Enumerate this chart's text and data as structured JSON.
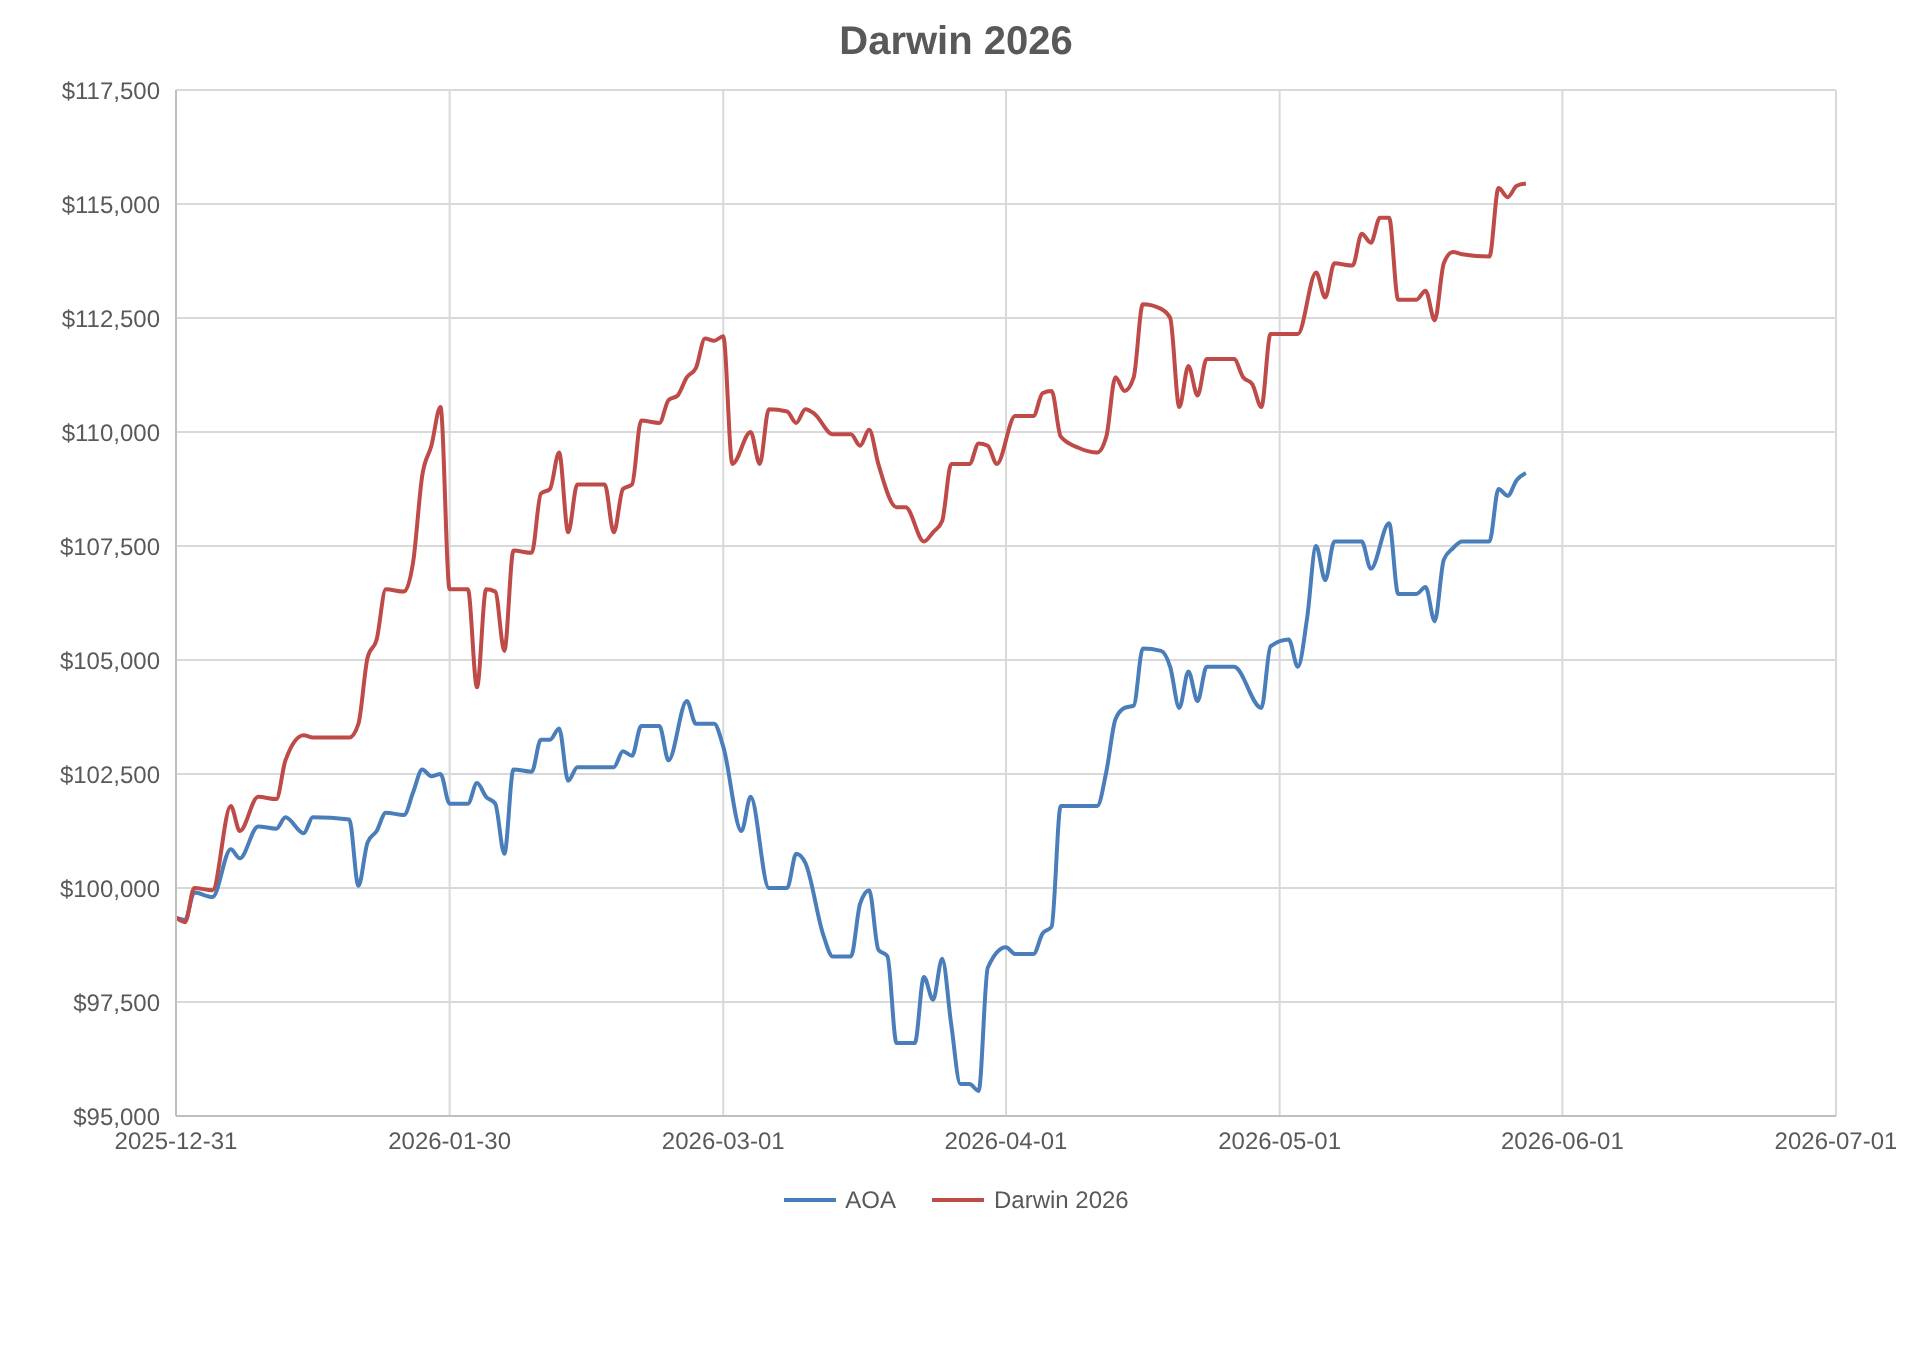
{
  "chart_data": {
    "type": "line",
    "title": "Darwin 2026",
    "legend": "bottom",
    "grid": true,
    "xlim": [
      "2025-12-31",
      "2026-07-01"
    ],
    "xticks": [
      "2025-12-31",
      "2026-01-30",
      "2026-03-01",
      "2026-04-01",
      "2026-05-01",
      "2026-06-01",
      "2026-07-01"
    ],
    "ylim": [
      95000,
      117500
    ],
    "yticks": [
      {
        "value": 95000,
        "label": "$95,000"
      },
      {
        "value": 97500,
        "label": "$97,500"
      },
      {
        "value": 100000,
        "label": "$100,000"
      },
      {
        "value": 102500,
        "label": "$102,500"
      },
      {
        "value": 105000,
        "label": "$105,000"
      },
      {
        "value": 107500,
        "label": "$107,500"
      },
      {
        "value": 110000,
        "label": "$110,000"
      },
      {
        "value": 112500,
        "label": "$112,500"
      },
      {
        "value": 115000,
        "label": "$115,000"
      },
      {
        "value": 117500,
        "label": "$117,500"
      }
    ],
    "series": [
      {
        "name": "AOA",
        "color": "#4a7ebb",
        "x": [
          "2025-12-31",
          "2026-01-01",
          "2026-01-02",
          "2026-01-04",
          "2026-01-06",
          "2026-01-07",
          "2026-01-09",
          "2026-01-11",
          "2026-01-12",
          "2026-01-14",
          "2026-01-15",
          "2026-01-19",
          "2026-01-20",
          "2026-01-21",
          "2026-01-22",
          "2026-01-23",
          "2026-01-25",
          "2026-01-26",
          "2026-01-27",
          "2026-01-28",
          "2026-01-29",
          "2026-01-30",
          "2026-02-01",
          "2026-02-02",
          "2026-02-03",
          "2026-02-04",
          "2026-02-05",
          "2026-02-06",
          "2026-02-08",
          "2026-02-09",
          "2026-02-10",
          "2026-02-11",
          "2026-02-12",
          "2026-02-13",
          "2026-02-17",
          "2026-02-18",
          "2026-02-19",
          "2026-02-20",
          "2026-02-22",
          "2026-02-23",
          "2026-02-25",
          "2026-02-26",
          "2026-02-28",
          "2026-03-01",
          "2026-03-03",
          "2026-03-04",
          "2026-03-06",
          "2026-03-08",
          "2026-03-09",
          "2026-03-10",
          "2026-03-12",
          "2026-03-13",
          "2026-03-15",
          "2026-03-16",
          "2026-03-17",
          "2026-03-18",
          "2026-03-19",
          "2026-03-20",
          "2026-03-22",
          "2026-03-23",
          "2026-03-24",
          "2026-03-25",
          "2026-03-26",
          "2026-03-27",
          "2026-03-28",
          "2026-03-29",
          "2026-03-30",
          "2026-04-01",
          "2026-04-02",
          "2026-04-04",
          "2026-04-05",
          "2026-04-06",
          "2026-04-07",
          "2026-04-11",
          "2026-04-12",
          "2026-04-13",
          "2026-04-14",
          "2026-04-15",
          "2026-04-16",
          "2026-04-18",
          "2026-04-19",
          "2026-04-20",
          "2026-04-21",
          "2026-04-22",
          "2026-04-23",
          "2026-04-26",
          "2026-04-29",
          "2026-04-30",
          "2026-05-02",
          "2026-05-03",
          "2026-05-04",
          "2026-05-05",
          "2026-05-06",
          "2026-05-07",
          "2026-05-10",
          "2026-05-11",
          "2026-05-13",
          "2026-05-14",
          "2026-05-16",
          "2026-05-17",
          "2026-05-18",
          "2026-05-19",
          "2026-05-20",
          "2026-05-21",
          "2026-05-24",
          "2026-05-25",
          "2026-05-26",
          "2026-05-27",
          "2026-05-28"
        ],
        "values": [
          99350,
          99300,
          99900,
          99800,
          100850,
          100650,
          101350,
          101300,
          101550,
          101200,
          101550,
          101500,
          100050,
          101000,
          101250,
          101650,
          101600,
          102100,
          102600,
          102450,
          102500,
          101850,
          101850,
          102300,
          102000,
          101850,
          100750,
          102600,
          102550,
          103250,
          103250,
          103500,
          102350,
          102650,
          102650,
          103000,
          102900,
          103550,
          103550,
          102800,
          104100,
          103600,
          103600,
          103100,
          101250,
          102000,
          100000,
          100000,
          100750,
          100550,
          98950,
          98500,
          98500,
          99650,
          99950,
          98650,
          98500,
          96600,
          96600,
          98050,
          97550,
          98450,
          97000,
          95700,
          95700,
          95550,
          98250,
          98700,
          98550,
          98550,
          99000,
          99150,
          101800,
          101800,
          102550,
          103700,
          103950,
          104000,
          105250,
          105200,
          104850,
          103950,
          104750,
          104100,
          104850,
          104850,
          103950,
          105300,
          105450,
          104850,
          105900,
          107500,
          106750,
          107600,
          107600,
          107000,
          108000,
          106450,
          106450,
          106600,
          105850,
          107200,
          107450,
          107600,
          107600,
          108750,
          108600,
          108950,
          109100
        ]
      },
      {
        "name": "Darwin 2026",
        "color": "#be4b48",
        "x": [
          "2025-12-31",
          "2026-01-01",
          "2026-01-02",
          "2026-01-04",
          "2026-01-06",
          "2026-01-07",
          "2026-01-09",
          "2026-01-11",
          "2026-01-12",
          "2026-01-14",
          "2026-01-15",
          "2026-01-19",
          "2026-01-20",
          "2026-01-21",
          "2026-01-22",
          "2026-01-23",
          "2026-01-25",
          "2026-01-26",
          "2026-01-27",
          "2026-01-28",
          "2026-01-29",
          "2026-01-30",
          "2026-02-01",
          "2026-02-02",
          "2026-02-03",
          "2026-02-04",
          "2026-02-05",
          "2026-02-06",
          "2026-02-08",
          "2026-02-09",
          "2026-02-10",
          "2026-02-11",
          "2026-02-12",
          "2026-02-13",
          "2026-02-16",
          "2026-02-17",
          "2026-02-18",
          "2026-02-19",
          "2026-02-20",
          "2026-02-22",
          "2026-02-23",
          "2026-02-24",
          "2026-02-25",
          "2026-02-26",
          "2026-02-27",
          "2026-02-28",
          "2026-03-01",
          "2026-03-02",
          "2026-03-04",
          "2026-03-05",
          "2026-03-06",
          "2026-03-08",
          "2026-03-09",
          "2026-03-10",
          "2026-03-11",
          "2026-03-13",
          "2026-03-15",
          "2026-03-16",
          "2026-03-17",
          "2026-03-18",
          "2026-03-20",
          "2026-03-21",
          "2026-03-23",
          "2026-03-24",
          "2026-03-25",
          "2026-03-26",
          "2026-03-28",
          "2026-03-29",
          "2026-03-30",
          "2026-03-31",
          "2026-04-02",
          "2026-04-04",
          "2026-04-05",
          "2026-04-06",
          "2026-04-07",
          "2026-04-09",
          "2026-04-11",
          "2026-04-12",
          "2026-04-13",
          "2026-04-14",
          "2026-04-15",
          "2026-04-16",
          "2026-04-18",
          "2026-04-19",
          "2026-04-20",
          "2026-04-21",
          "2026-04-22",
          "2026-04-23",
          "2026-04-26",
          "2026-04-27",
          "2026-04-28",
          "2026-04-29",
          "2026-04-30",
          "2026-05-03",
          "2026-05-05",
          "2026-05-06",
          "2026-05-07",
          "2026-05-09",
          "2026-05-10",
          "2026-05-11",
          "2026-05-12",
          "2026-05-13",
          "2026-05-14",
          "2026-05-16",
          "2026-05-17",
          "2026-05-18",
          "2026-05-19",
          "2026-05-20",
          "2026-05-21",
          "2026-05-24",
          "2026-05-25",
          "2026-05-26",
          "2026-05-27",
          "2026-05-28"
        ],
        "values": [
          99350,
          99250,
          100000,
          99950,
          101800,
          101250,
          102000,
          101950,
          102800,
          103350,
          103300,
          103300,
          103600,
          105050,
          105450,
          106550,
          106500,
          107150,
          109050,
          109700,
          110550,
          106550,
          106550,
          104400,
          106550,
          106500,
          105200,
          107400,
          107350,
          108650,
          108750,
          109550,
          107800,
          108850,
          108850,
          107800,
          108750,
          108850,
          110250,
          110200,
          110700,
          110800,
          111200,
          111400,
          112050,
          112000,
          112100,
          109300,
          110000,
          109300,
          110500,
          110450,
          110200,
          110500,
          110400,
          109950,
          109950,
          109700,
          110050,
          109300,
          108350,
          108350,
          107600,
          107800,
          108050,
          109300,
          109300,
          109750,
          109700,
          109300,
          110350,
          110350,
          110850,
          110900,
          109900,
          109650,
          109550,
          109900,
          111200,
          110900,
          111200,
          112800,
          112700,
          112500,
          110550,
          111450,
          110800,
          111600,
          111600,
          111200,
          111050,
          110550,
          112150,
          112150,
          113500,
          112950,
          113700,
          113650,
          114350,
          114150,
          114700,
          114700,
          112900,
          112900,
          113100,
          112450,
          113700,
          113950,
          113900,
          113850,
          115350,
          115150,
          115400,
          115450
        ]
      }
    ]
  }
}
